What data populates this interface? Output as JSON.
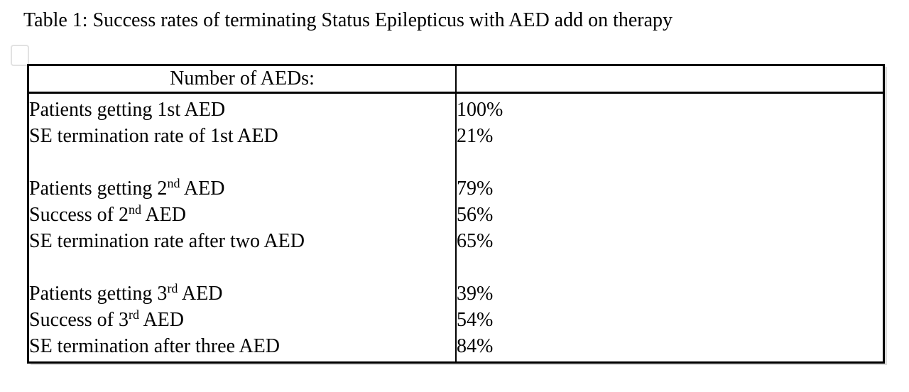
{
  "title": "Table 1: Success rates of terminating Status Epilepticus with AED add on therapy",
  "table": {
    "header": {
      "col1": "Number of AEDs:",
      "col2": ""
    },
    "rows": [
      {
        "pre": "Patients getting 1st AED",
        "sup": "",
        "post": "",
        "value": "100%"
      },
      {
        "pre": "SE termination rate of 1st AED",
        "sup": "",
        "post": "",
        "value": "21%"
      },
      {
        "pre": "",
        "sup": "",
        "post": "",
        "value": ""
      },
      {
        "pre": "Patients getting 2",
        "sup": "nd",
        "post": " AED",
        "value": "79%"
      },
      {
        "pre": "Success of 2",
        "sup": "nd",
        "post": " AED",
        "value": "56%"
      },
      {
        "pre": "SE termination rate after two AED",
        "sup": "",
        "post": "",
        "value": "65%"
      },
      {
        "pre": "",
        "sup": "",
        "post": "",
        "value": ""
      },
      {
        "pre": "Patients getting 3",
        "sup": "rd",
        "post": " AED",
        "value": "39%"
      },
      {
        "pre": "Success of 3",
        "sup": "rd",
        "post": " AED",
        "value": "54%"
      },
      {
        "pre": "SE termination after three AED",
        "sup": "",
        "post": "",
        "value": "84%"
      }
    ]
  },
  "colors": {
    "background": "#ffffff",
    "text": "#000000",
    "table_border": "#000000",
    "anchor_marker_border": "#e2e2e2",
    "table_shadow": "#dcdcdc"
  }
}
